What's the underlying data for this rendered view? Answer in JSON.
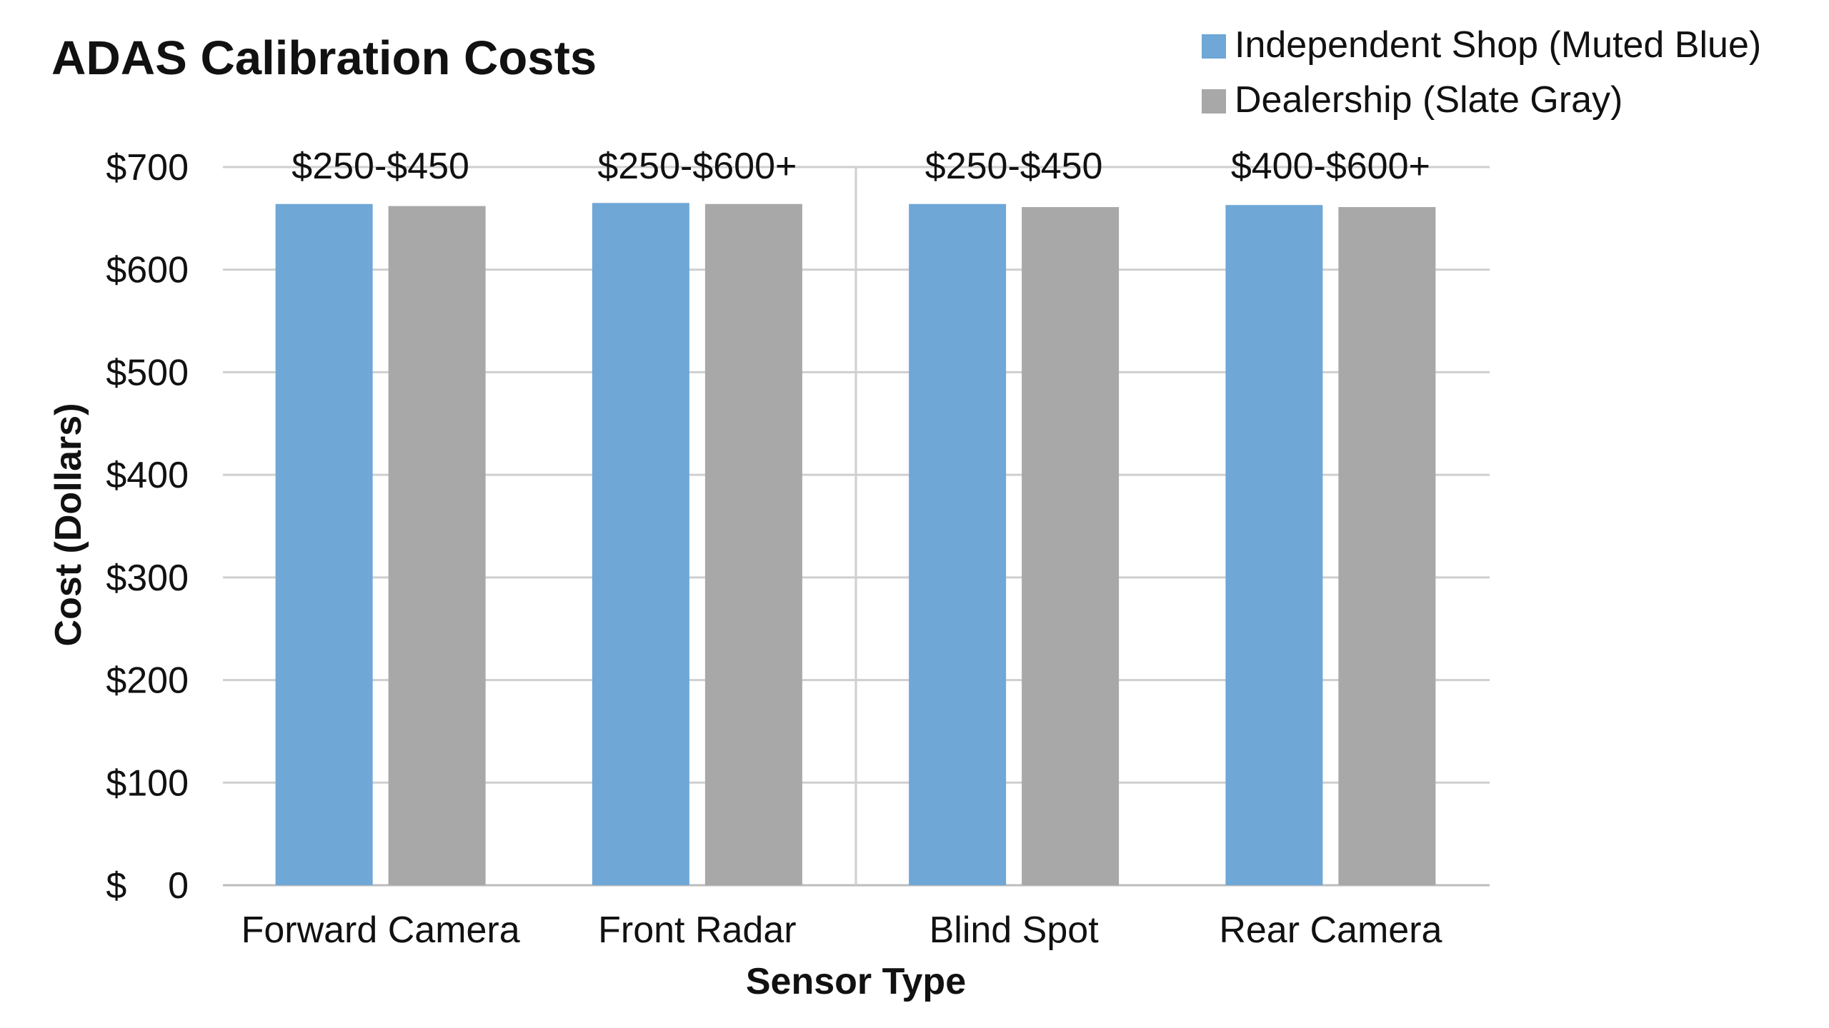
{
  "chart_data": {
    "type": "bar",
    "title": "ADAS Calibration Costs",
    "xlabel": "Sensor Type",
    "ylabel": "Cost (Dollars)",
    "categories": [
      "Forward Camera",
      "Front Radar",
      "Blind Spot",
      "Rear Camera"
    ],
    "range_labels": [
      "$250-$450",
      "$250-$600+",
      "$250-$450",
      "$400-$600+"
    ],
    "series": [
      {
        "name": "Independent Shop (Muted Blue)",
        "color": "#6fa7d6",
        "values": [
          664,
          665,
          664,
          663
        ]
      },
      {
        "name": "Dealership (Slate Gray)",
        "color": "#a8a8a8",
        "values": [
          662,
          664,
          661,
          661
        ]
      }
    ],
    "ylim": [
      0,
      700
    ],
    "yticks": [
      0,
      100,
      200,
      300,
      400,
      500,
      600,
      700
    ],
    "ytick_labels": [
      "$    0",
      "$100",
      "$200",
      "$300",
      "$400",
      "$500",
      "$600",
      "$700"
    ],
    "grid": true,
    "legend_position": "top-right"
  }
}
